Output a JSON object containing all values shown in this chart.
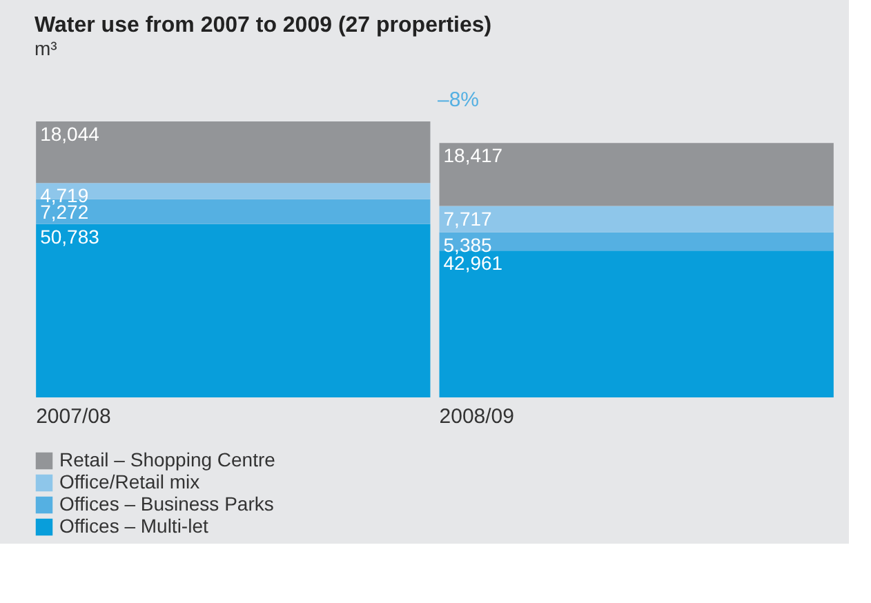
{
  "chart_data": {
    "type": "bar",
    "title": "Water use from 2007 to 2009 (27 properties)",
    "ylabel": "m³",
    "categories": [
      "2007/08",
      "2008/09"
    ],
    "stacked": true,
    "legend": "bottom",
    "grid": false,
    "annotations": [
      "–8%"
    ],
    "series": [
      {
        "name": "Offices – Multi-let",
        "color": "#089edb",
        "values": [
          50783,
          42961
        ],
        "value_labels": [
          "50,783",
          "42,961"
        ]
      },
      {
        "name": "Offices – Business Parks",
        "color": "#55b0e2",
        "values": [
          7272,
          5385
        ],
        "value_labels": [
          "7,272",
          "5,385"
        ]
      },
      {
        "name": "Office/Retail mix",
        "color": "#8ec6ea",
        "values": [
          4719,
          7717
        ],
        "value_labels": [
          "4,719",
          "7,717"
        ]
      },
      {
        "name": "Retail – Shopping Centre",
        "color": "#939598",
        "values": [
          18044,
          18417
        ],
        "value_labels": [
          "18,044",
          "18,417"
        ]
      }
    ]
  }
}
